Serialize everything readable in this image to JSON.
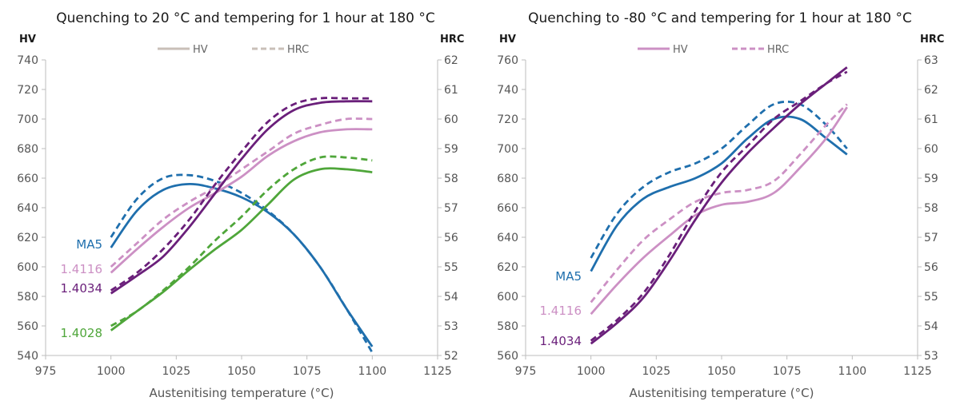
{
  "chart_data": [
    {
      "type": "line",
      "title": "Quenching to 20 °C and tempering for 1 hour at 180 °C",
      "xlabel": "Austenitising temperature (°C)",
      "ylabel": "HV",
      "y2label": "HRC",
      "xlim": [
        975,
        1125
      ],
      "xticks": [
        975,
        1000,
        1025,
        1050,
        1075,
        1100,
        1125
      ],
      "ylim": [
        540,
        740
      ],
      "yticks": [
        540,
        560,
        580,
        600,
        620,
        640,
        660,
        680,
        700,
        720,
        740
      ],
      "y2lim": [
        52,
        62
      ],
      "y2ticks": [
        52,
        53,
        54,
        55,
        56,
        57,
        58,
        59,
        60,
        61,
        62
      ],
      "legend": [
        {
          "label": "HV",
          "style": "solid",
          "color": "#c9bfb8"
        },
        {
          "label": "HRC",
          "style": "dashed",
          "color": "#c9bfb8"
        }
      ],
      "series": [
        {
          "name": "MA5",
          "color": "#1f6fad",
          "x": [
            1000,
            1010,
            1020,
            1030,
            1040,
            1050,
            1060,
            1070,
            1080,
            1090,
            1100
          ],
          "hv": [
            613,
            638,
            652,
            656,
            653,
            647,
            637,
            622,
            600,
            572,
            546
          ],
          "hrc": [
            56.0,
            57.3,
            58.0,
            58.1,
            57.9,
            57.5,
            56.9,
            56.1,
            55.0,
            53.6,
            52.1
          ]
        },
        {
          "name": "1.4116",
          "color": "#cc90c4",
          "x": [
            1000,
            1010,
            1020,
            1030,
            1040,
            1050,
            1060,
            1070,
            1080,
            1090,
            1100
          ],
          "hv": [
            596,
            612,
            627,
            640,
            650,
            661,
            675,
            685,
            691,
            693,
            693
          ],
          "hrc": [
            55.0,
            55.8,
            56.6,
            57.2,
            57.7,
            58.3,
            58.9,
            59.5,
            59.8,
            60.0,
            60.0
          ]
        },
        {
          "name": "1.4034",
          "color": "#6a1f7a",
          "x": [
            1000,
            1010,
            1020,
            1030,
            1040,
            1050,
            1060,
            1070,
            1080,
            1090,
            1100
          ],
          "hv": [
            582,
            594,
            607,
            627,
            650,
            673,
            693,
            706,
            711,
            712,
            712
          ],
          "hrc": [
            54.2,
            54.8,
            55.6,
            56.6,
            57.8,
            58.9,
            59.9,
            60.5,
            60.7,
            60.7,
            60.7
          ]
        },
        {
          "name": "1.4028",
          "color": "#4fa63a",
          "x": [
            1000,
            1010,
            1020,
            1030,
            1040,
            1050,
            1060,
            1070,
            1080,
            1090,
            1100
          ],
          "hv": [
            557,
            570,
            583,
            598,
            612,
            625,
            642,
            659,
            666,
            666,
            664
          ],
          "hrc": [
            53.0,
            53.5,
            54.2,
            55.0,
            55.9,
            56.7,
            57.6,
            58.3,
            58.7,
            58.7,
            58.6
          ]
        }
      ]
    },
    {
      "type": "line",
      "title": "Quenching to -80 °C and tempering for 1 hour at 180 °C",
      "xlabel": "Austenitising temperature (°C)",
      "ylabel": "HV",
      "y2label": "HRC",
      "xlim": [
        975,
        1125
      ],
      "xticks": [
        975,
        1000,
        1025,
        1050,
        1075,
        1100,
        1125
      ],
      "ylim": [
        560,
        760
      ],
      "yticks": [
        560,
        580,
        600,
        620,
        640,
        660,
        680,
        700,
        720,
        740,
        760
      ],
      "y2lim": [
        53,
        63
      ],
      "y2ticks": [
        53,
        54,
        55,
        56,
        57,
        58,
        59,
        60,
        61,
        62,
        63
      ],
      "legend": [
        {
          "label": "HV",
          "style": "solid",
          "color": "#cc90c4"
        },
        {
          "label": "HRC",
          "style": "dashed",
          "color": "#cc90c4"
        }
      ],
      "series": [
        {
          "name": "MA5",
          "color": "#1f6fad",
          "x": [
            1000,
            1010,
            1020,
            1030,
            1040,
            1050,
            1060,
            1070,
            1080,
            1090,
            1098
          ],
          "hv": [
            617,
            648,
            666,
            674,
            680,
            690,
            707,
            720,
            720,
            707,
            696
          ],
          "hrc": [
            56.3,
            57.8,
            58.7,
            59.2,
            59.5,
            60.0,
            60.8,
            61.5,
            61.5,
            60.8,
            60.0
          ]
        },
        {
          "name": "1.4116",
          "color": "#cc90c4",
          "x": [
            1000,
            1010,
            1020,
            1030,
            1040,
            1050,
            1060,
            1070,
            1080,
            1090,
            1098
          ],
          "hv": [
            588,
            608,
            626,
            641,
            655,
            662,
            664,
            670,
            687,
            707,
            728
          ],
          "hrc": [
            54.8,
            55.9,
            56.9,
            57.6,
            58.2,
            58.5,
            58.6,
            58.9,
            59.8,
            60.8,
            61.5
          ]
        },
        {
          "name": "1.4034",
          "color": "#6a1f7a",
          "x": [
            1000,
            1010,
            1020,
            1030,
            1040,
            1050,
            1060,
            1070,
            1080,
            1090,
            1098
          ],
          "hv": [
            568,
            582,
            599,
            624,
            652,
            677,
            697,
            714,
            730,
            744,
            755
          ],
          "hrc": [
            53.5,
            54.2,
            55.1,
            56.4,
            57.9,
            59.2,
            60.1,
            61.0,
            61.6,
            62.2,
            62.6
          ]
        }
      ]
    }
  ]
}
